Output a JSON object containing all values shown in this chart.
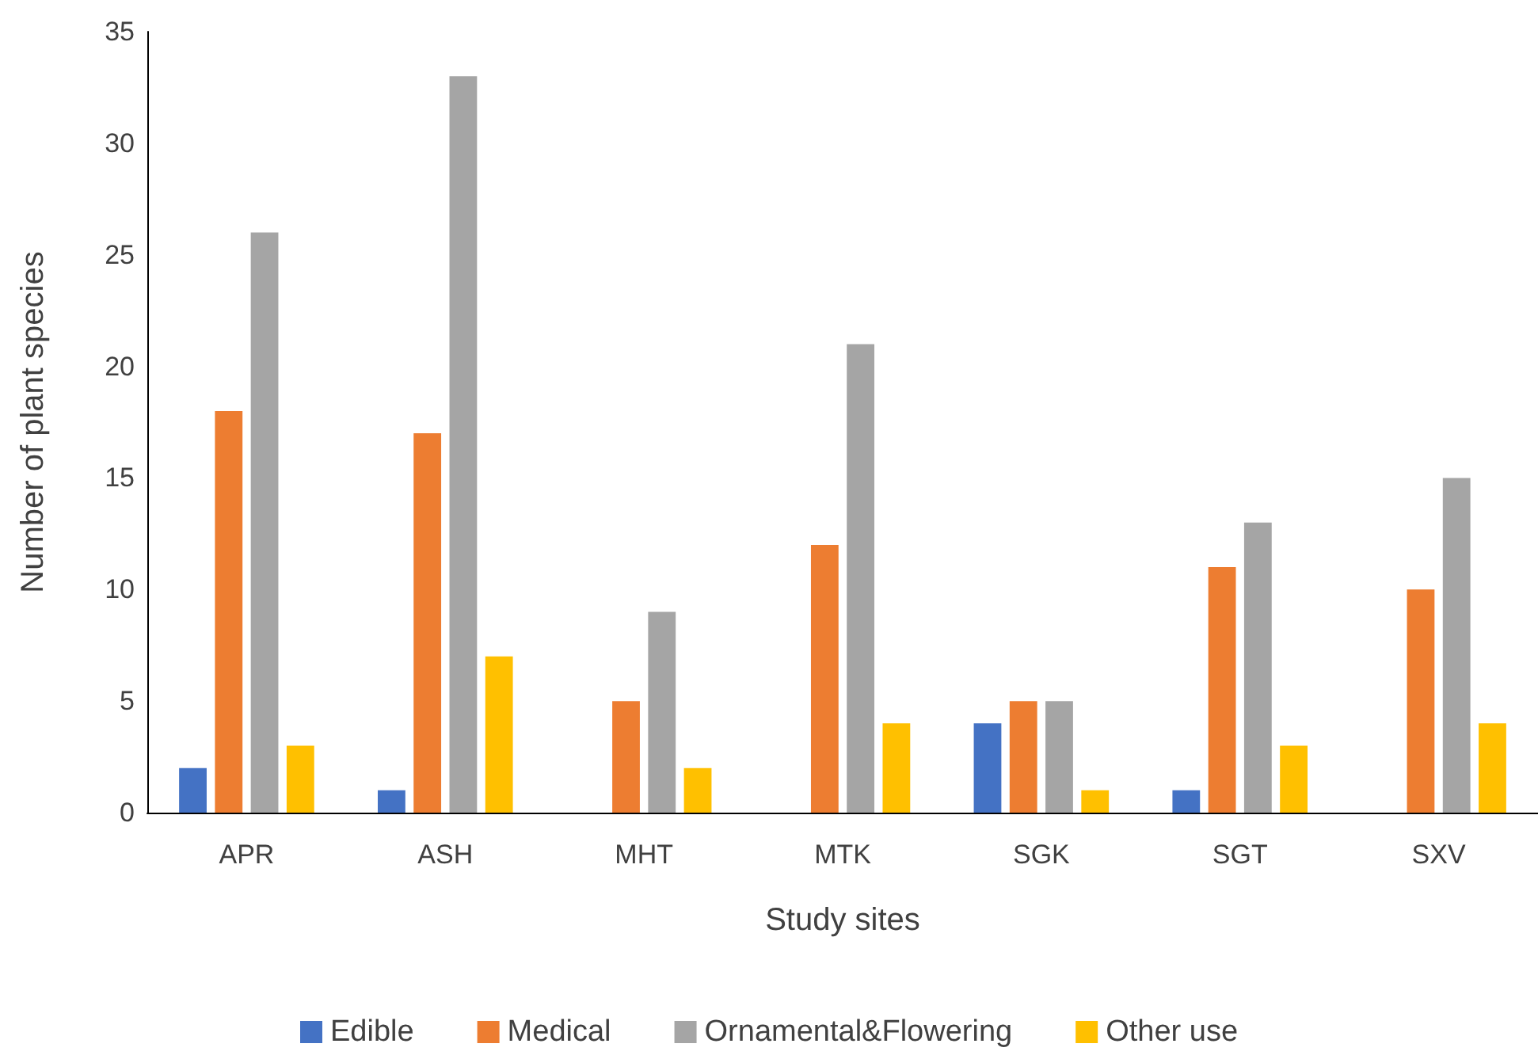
{
  "chart_data": {
    "type": "bar",
    "xlabel": "Study sites",
    "ylabel": "Number of plant species",
    "categories": [
      "APR",
      "ASH",
      "MHT",
      "MTK",
      "SGK",
      "SGT",
      "SXV"
    ],
    "series": [
      {
        "name": "Edible",
        "color": "#4472c4",
        "values": [
          2,
          1,
          0,
          0,
          4,
          1,
          0
        ]
      },
      {
        "name": "Medical",
        "color": "#ed7d31",
        "values": [
          18,
          17,
          5,
          12,
          5,
          11,
          10
        ]
      },
      {
        "name": "Ornamental&Flowering",
        "color": "#a5a5a5",
        "values": [
          26,
          33,
          9,
          21,
          5,
          13,
          15
        ]
      },
      {
        "name": "Other use",
        "color": "#ffc000",
        "values": [
          3,
          7,
          2,
          4,
          1,
          3,
          4
        ]
      }
    ],
    "ylim": [
      0,
      35
    ],
    "yticks": [
      0,
      5,
      10,
      15,
      20,
      25,
      30,
      35
    ],
    "grid": false,
    "legend": "bottom"
  }
}
